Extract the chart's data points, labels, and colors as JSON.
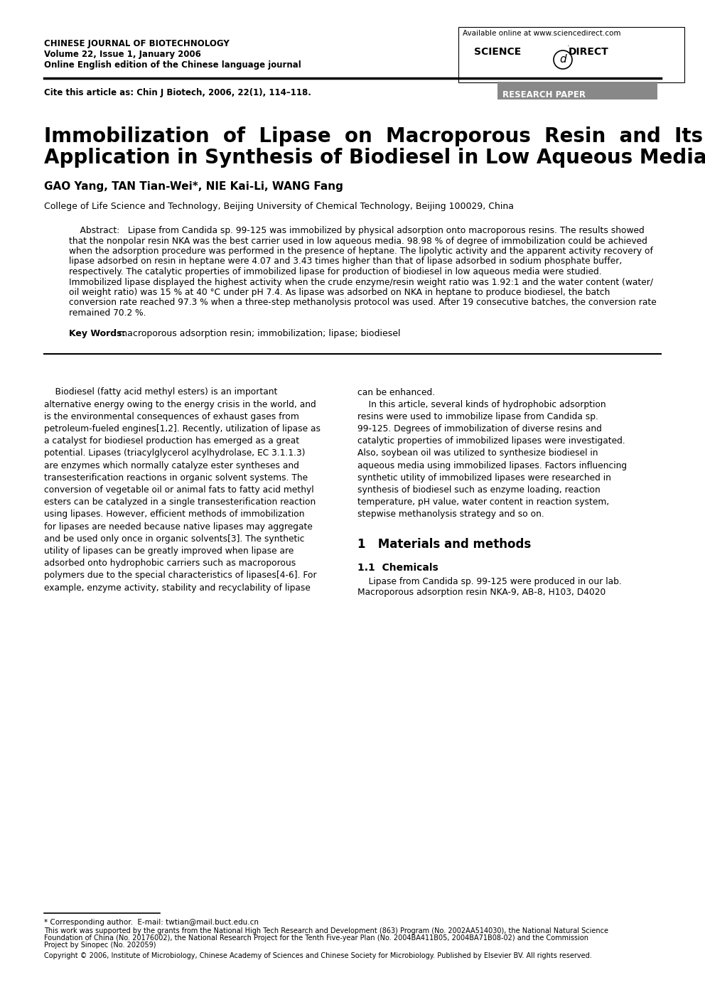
{
  "background_color": "#ffffff",
  "journal_name": "CHINESE JOURNAL OF BIOTECHNOLOGY",
  "journal_volume": "Volume 22, Issue 1, January 2006",
  "journal_edition": "Online English edition of the Chinese language journal",
  "available_online": "Available online at www.sciencedirect.com",
  "cite_text": "Cite this article as: Chin J Biotech, 2006, 22(1), 114–118.",
  "research_paper_label": "RESEARCH PAPER",
  "paper_title_line1": "Immobilization  of  Lipase  on  Macroporous  Resin  and  Its",
  "paper_title_line2": "Application in Synthesis of Biodiesel in Low Aqueous Media",
  "authors": "GAO Yang, TAN Tian-Wei*, NIE Kai-Li, WANG Fang",
  "affiliation": "College of Life Science and Technology, Beijing University of Chemical Technology, Beijing 100029, China",
  "keywords_label": "Key Words:",
  "keywords_text": "   macroporous adsorption resin; immobilization; lipase; biodiesel",
  "footnote_star": "* Corresponding author.  E-mail: twtian@mail.buct.edu.cn",
  "footnote_support1": "This work was supported by the grants from the National High Tech Research and Development (863) Program (No. 2002AA514030), the National Natural Science",
  "footnote_support2": "Foundation of China (No. 20176002), the National Research Project for the Tenth Five-year Plan (No. 2004BA411B05, 2004BA71B08-02) and the Commission",
  "footnote_support3": "Project by Sinopec (No. 202059)",
  "footnote_copyright": "Copyright © 2006, Institute of Microbiology, Chinese Academy of Sciences and Chinese Society for Microbiology. Published by Elsevier BV. All rights reserved.",
  "abs_lines": [
    "    Abstract:   Lipase from Candida sp. 99-125 was immobilized by physical adsorption onto macroporous resins. The results showed",
    "that the nonpolar resin NKA was the best carrier used in low aqueous media. 98.98 % of degree of immobilization could be achieved",
    "when the adsorption procedure was performed in the presence of heptane. The lipolytic activity and the apparent activity recovery of",
    "lipase adsorbed on resin in heptane were 4.07 and 3.43 times higher than that of lipase adsorbed in sodium phosphate buffer,",
    "respectively. The catalytic properties of immobilized lipase for production of biodiesel in low aqueous media were studied.",
    "Immobilized lipase displayed the highest activity when the crude enzyme/resin weight ratio was 1.92:1 and the water content (water/",
    "oil weight ratio) was 15 % at 40 °C under pH 7.4. As lipase was adsorbed on NKA in heptane to produce biodiesel, the batch",
    "conversion rate reached 97.3 % when a three-step methanolysis protocol was used. After 19 consecutive batches, the conversion rate",
    "remained 70.2 %."
  ],
  "col1_lines": [
    "    Biodiesel (fatty acid methyl esters) is an important",
    "alternative energy owing to the energy crisis in the world, and",
    "is the environmental consequences of exhaust gases from",
    "petroleum-fueled engines[1,2]. Recently, utilization of lipase as",
    "a catalyst for biodiesel production has emerged as a great",
    "potential. Lipases (triacylglycerol acylhydrolase, EC 3.1.1.3)",
    "are enzymes which normally catalyze ester syntheses and",
    "transesterification reactions in organic solvent systems. The",
    "conversion of vegetable oil or animal fats to fatty acid methyl",
    "esters can be catalyzed in a single transesterification reaction",
    "using lipases. However, efficient methods of immobilization",
    "for lipases are needed because native lipases may aggregate",
    "and be used only once in organic solvents[3]. The synthetic",
    "utility of lipases can be greatly improved when lipase are",
    "adsorbed onto hydrophobic carriers such as macroporous",
    "polymers due to the special characteristics of lipases[4-6]. For",
    "example, enzyme activity, stability and recyclability of lipase"
  ],
  "col2_lines": [
    "can be enhanced.",
    "    In this article, several kinds of hydrophobic adsorption",
    "resins were used to immobilize lipase from Candida sp.",
    "99-125. Degrees of immobilization of diverse resins and",
    "catalytic properties of immobilized lipases were investigated.",
    "Also, soybean oil was utilized to synthesize biodiesel in",
    "aqueous media using immobilized lipases. Factors influencing",
    "synthetic utility of immobilized lipases were researched in",
    "synthesis of biodiesel such as enzyme loading, reaction",
    "temperature, pH value, water content in reaction system,",
    "stepwise methanolysis strategy and so on."
  ],
  "col2_section1": "1   Materials and methods",
  "col2_section11": "1.1  Chemicals",
  "col2_section11_text1": "    Lipase from Candida sp. 99-125 were produced in our lab.",
  "col2_section11_text2": "Macroporous adsorption resin NKA-9, AB-8, H103, D4020"
}
